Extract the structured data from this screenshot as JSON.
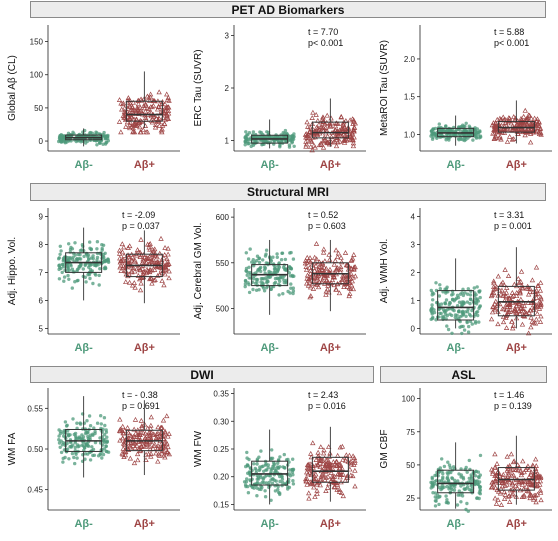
{
  "colors": {
    "neg": "#4e9a7b",
    "pos": "#9e4545",
    "box": "#333333"
  },
  "sections": [
    {
      "id": "pet",
      "title": "PET AD Biomarkers"
    },
    {
      "id": "mri",
      "title": "Structural MRI"
    },
    {
      "id": "dwi",
      "title": "DWI"
    },
    {
      "id": "asl",
      "title": "ASL"
    }
  ],
  "chart_data": [
    {
      "type": "box",
      "section": "pet",
      "ylabel": "Global Aβ (CL)",
      "categories": [
        "Aβ-",
        "Aβ+"
      ],
      "ylim": [
        -15,
        175
      ],
      "yticks": [
        0,
        50,
        100,
        150
      ],
      "yfmt": 0,
      "stat_t": "",
      "stat_p": "",
      "boxes": [
        {
          "q1": 2,
          "median": 5,
          "q3": 9,
          "lo": -8,
          "hi": 19,
          "spread": 6
        },
        {
          "q1": 30,
          "median": 40,
          "q3": 60,
          "lo": 20,
          "hi": 105,
          "spread": 22
        }
      ]
    },
    {
      "type": "box",
      "section": "pet",
      "ylabel": "ERC Tau (SUVR)",
      "categories": [
        "Aβ-",
        "Aβ+"
      ],
      "ylim": [
        0.8,
        3.2
      ],
      "yticks": [
        1,
        2,
        3
      ],
      "yfmt": 0,
      "stat_t": "t = 7.70",
      "stat_p": "p< 0.001",
      "boxes": [
        {
          "q1": 0.95,
          "median": 1.03,
          "q3": 1.1,
          "lo": 0.85,
          "hi": 1.4,
          "spread": 0.1
        },
        {
          "q1": 1.05,
          "median": 1.15,
          "q3": 1.35,
          "lo": 0.88,
          "hi": 1.8,
          "spread": 0.22
        }
      ]
    },
    {
      "type": "box",
      "section": "pet",
      "ylabel": "MetaROI Tau (SUVR)",
      "categories": [
        "Aβ-",
        "Aβ+"
      ],
      "ylim": [
        0.78,
        2.45
      ],
      "yticks": [
        1.0,
        1.5,
        2.0
      ],
      "yfmt": 1,
      "stat_t": "t = 5.88",
      "stat_p": "p< 0.001",
      "boxes": [
        {
          "q1": 0.97,
          "median": 1.02,
          "q3": 1.08,
          "lo": 0.85,
          "hi": 1.25,
          "spread": 0.07
        },
        {
          "q1": 1.03,
          "median": 1.09,
          "q3": 1.17,
          "lo": 0.88,
          "hi": 1.45,
          "spread": 0.12
        }
      ]
    },
    {
      "type": "box",
      "section": "mri",
      "ylabel": "Adj. Hippo. Vol.",
      "categories": [
        "Aβ-",
        "Aβ+"
      ],
      "ylim": [
        4.8,
        9.3
      ],
      "yticks": [
        5,
        6,
        7,
        8,
        9
      ],
      "yfmt": 0,
      "stat_t": "t = -2.09",
      "stat_p": "p = 0.037",
      "boxes": [
        {
          "q1": 7.0,
          "median": 7.35,
          "q3": 7.7,
          "lo": 6.0,
          "hi": 8.6,
          "spread": 0.5
        },
        {
          "q1": 6.85,
          "median": 7.25,
          "q3": 7.65,
          "lo": 5.9,
          "hi": 8.5,
          "spread": 0.55
        }
      ]
    },
    {
      "type": "box",
      "section": "mri",
      "ylabel": "Adj. Cerebral GM Vol.",
      "categories": [
        "Aβ-",
        "Aβ+"
      ],
      "ylim": [
        472,
        610
      ],
      "yticks": [
        500,
        550,
        600
      ],
      "yfmt": 0,
      "stat_t": "t = 0.52",
      "stat_p": "p = 0.603",
      "boxes": [
        {
          "q1": 525,
          "median": 537,
          "q3": 548,
          "lo": 493,
          "hi": 575,
          "spread": 17
        },
        {
          "q1": 527,
          "median": 538,
          "q3": 550,
          "lo": 497,
          "hi": 575,
          "spread": 17
        }
      ]
    },
    {
      "type": "box",
      "section": "mri",
      "ylabel": "Adj. WMH Vol.",
      "categories": [
        "Aβ-",
        "Aβ+"
      ],
      "ylim": [
        -0.2,
        4.3
      ],
      "yticks": [
        0,
        1,
        2,
        3,
        4
      ],
      "yfmt": 0,
      "stat_t": "t = 3.31",
      "stat_p": "p = 0.001",
      "boxes": [
        {
          "q1": 0.3,
          "median": 0.75,
          "q3": 1.35,
          "lo": 0.0,
          "hi": 2.5,
          "spread": 0.6
        },
        {
          "q1": 0.45,
          "median": 0.95,
          "q3": 1.5,
          "lo": 0.0,
          "hi": 2.9,
          "spread": 0.7
        }
      ]
    },
    {
      "type": "box",
      "section": "dwi",
      "ylabel": "WM FA",
      "categories": [
        "Aβ-",
        "Aβ+"
      ],
      "ylim": [
        0.425,
        0.575
      ],
      "yticks": [
        0.45,
        0.5,
        0.55
      ],
      "yfmt": 2,
      "stat_t": "t = - 0.38",
      "stat_p": "p = 0.691",
      "boxes": [
        {
          "q1": 0.497,
          "median": 0.51,
          "q3": 0.524,
          "lo": 0.465,
          "hi": 0.565,
          "spread": 0.018
        },
        {
          "q1": 0.498,
          "median": 0.51,
          "q3": 0.523,
          "lo": 0.468,
          "hi": 0.56,
          "spread": 0.018
        }
      ]
    },
    {
      "type": "box",
      "section": "dwi",
      "ylabel": "WM FW",
      "categories": [
        "Aβ-",
        "Aβ+"
      ],
      "ylim": [
        0.14,
        0.36
      ],
      "yticks": [
        0.15,
        0.2,
        0.25,
        0.3,
        0.35
      ],
      "yfmt": 2,
      "stat_t": "t = 2.43",
      "stat_p": "p = 0.016",
      "boxes": [
        {
          "q1": 0.185,
          "median": 0.205,
          "q3": 0.228,
          "lo": 0.15,
          "hi": 0.285,
          "spread": 0.028
        },
        {
          "q1": 0.19,
          "median": 0.21,
          "q3": 0.235,
          "lo": 0.155,
          "hi": 0.29,
          "spread": 0.03
        }
      ]
    },
    {
      "type": "box",
      "section": "asl",
      "ylabel": "GM CBF",
      "categories": [
        "Aβ-",
        "Aβ+"
      ],
      "ylim": [
        16,
        108
      ],
      "yticks": [
        25,
        50,
        75,
        100
      ],
      "yfmt": 0,
      "stat_t": "t = 1.46",
      "stat_p": "p = 0.139",
      "boxes": [
        {
          "q1": 29,
          "median": 36,
          "q3": 46,
          "lo": 17,
          "hi": 67,
          "spread": 12
        },
        {
          "q1": 31,
          "median": 39,
          "q3": 48,
          "lo": 20,
          "hi": 72,
          "spread": 12
        }
      ]
    }
  ]
}
